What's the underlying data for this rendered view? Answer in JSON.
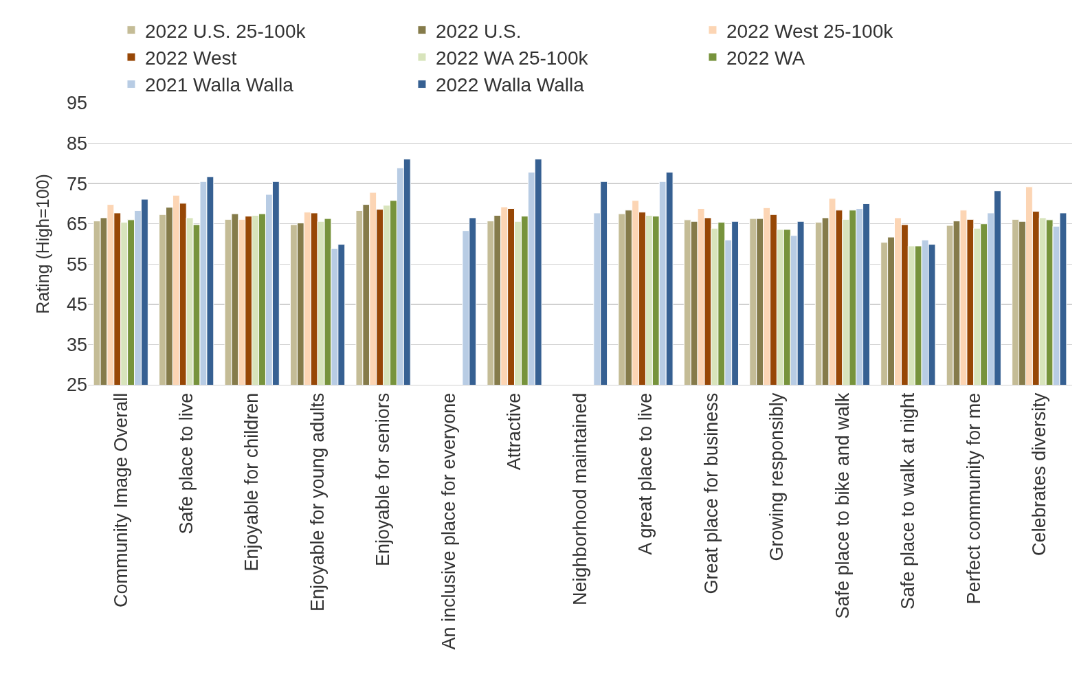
{
  "chart_data": {
    "type": "bar",
    "ylabel": "Rating (High=100)",
    "categories": [
      "Community Image Overall",
      "Safe place to live",
      "Enjoyable for children",
      "Enjoyable for young adults",
      "Enjoyable for seniors",
      "An inclusive place for everyone",
      "Attractive",
      "Neighborhood maintained",
      "A great place to live",
      "Great place for business",
      "Growing responsibly",
      "Safe place to bike and walk",
      "Safe place to walk at night",
      "Perfect community for me",
      "Celebrates diversity"
    ],
    "series": [
      {
        "name": "2022 U.S. 25-100k",
        "color": "#c4bc96",
        "values": [
          65.7,
          67.3,
          66.1,
          64.8,
          68.3,
          null,
          65.7,
          null,
          67.5,
          66.0,
          66.3,
          65.4,
          60.4,
          64.6,
          66.1
        ]
      },
      {
        "name": "2022 U.S.",
        "color": "#857b4a",
        "values": [
          66.5,
          69.1,
          67.5,
          65.2,
          69.8,
          null,
          67.1,
          null,
          68.4,
          65.6,
          66.3,
          66.5,
          61.7,
          65.7,
          65.6
        ]
      },
      {
        "name": "2022 West 25-100k",
        "color": "#fcd5b4",
        "values": [
          69.8,
          72.1,
          66.1,
          67.9,
          72.8,
          null,
          69.2,
          null,
          70.8,
          68.8,
          69.0,
          71.3,
          66.5,
          68.4,
          74.2
        ]
      },
      {
        "name": "2022 West",
        "color": "#974706",
        "values": [
          67.7,
          70.1,
          66.9,
          67.7,
          68.6,
          null,
          68.8,
          null,
          67.9,
          66.5,
          67.3,
          68.4,
          64.8,
          66.1,
          68.1
        ]
      },
      {
        "name": "2022 WA 25-100k",
        "color": "#d8e4bc",
        "values": [
          65.4,
          66.5,
          67.1,
          65.6,
          69.6,
          null,
          65.6,
          null,
          67.1,
          63.9,
          63.6,
          66.1,
          59.5,
          63.9,
          66.5
        ]
      },
      {
        "name": "2022 WA",
        "color": "#77933c",
        "values": [
          66.0,
          64.8,
          67.5,
          66.3,
          70.8,
          null,
          66.9,
          null,
          66.9,
          65.4,
          63.6,
          68.4,
          59.5,
          65.0,
          66.0
        ]
      },
      {
        "name": "2021 Walla Walla",
        "color": "#b8cce4",
        "values": [
          68.3,
          75.5,
          72.3,
          58.9,
          78.9,
          63.3,
          77.8,
          67.7,
          75.5,
          61.0,
          62.1,
          68.8,
          61.0,
          67.7,
          64.4
        ]
      },
      {
        "name": "2022 Walla Walla",
        "color": "#366092",
        "values": [
          71.1,
          76.7,
          75.5,
          59.9,
          81.1,
          66.5,
          81.1,
          75.5,
          77.8,
          65.6,
          65.6,
          70.0,
          59.9,
          73.2,
          67.7
        ]
      }
    ],
    "ylim": [
      25,
      95
    ],
    "yticks": [
      25,
      35,
      45,
      55,
      65,
      75,
      85,
      95
    ],
    "grid": "y",
    "legend": "top"
  }
}
